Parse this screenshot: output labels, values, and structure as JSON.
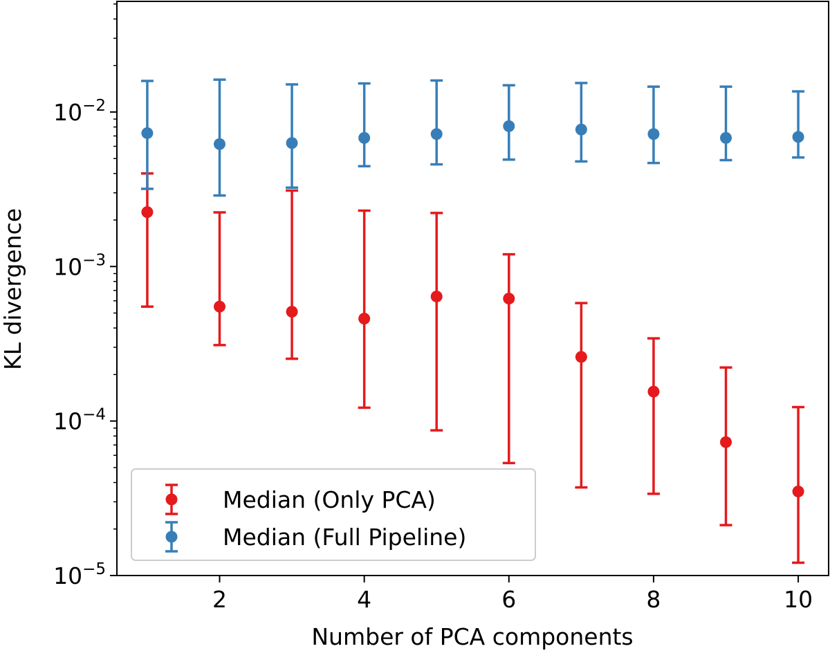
{
  "chart_data": {
    "type": "scatter",
    "title": "",
    "xlabel": "Number of PCA components",
    "ylabel": "KL divergence",
    "yscale": "log",
    "xlim": [
      0.58,
      10.42
    ],
    "ylim": [
      1e-05,
      0.052
    ],
    "xticks": [
      2,
      4,
      6,
      8,
      10
    ],
    "xtick_labels": [
      "2",
      "4",
      "6",
      "8",
      "10"
    ],
    "yticks": [
      {
        "value": 1e-05,
        "base": "10",
        "exp": "−5"
      },
      {
        "value": 0.0001,
        "base": "10",
        "exp": "−4"
      },
      {
        "value": 0.001,
        "base": "10",
        "exp": "−3"
      },
      {
        "value": 0.01,
        "base": "10",
        "exp": "−2"
      }
    ],
    "grid": false,
    "legend_position": "lower-left",
    "series": [
      {
        "name": "Median (Only PCA)",
        "color": "#e41a1c",
        "x": [
          1,
          2,
          3,
          4,
          5,
          6,
          7,
          8,
          9,
          10
        ],
        "y": [
          0.00225,
          0.00055,
          0.00051,
          0.00046,
          0.00064,
          0.00062,
          0.00026,
          0.000155,
          7.3e-05,
          3.5e-05
        ],
        "y_low": [
          0.00055,
          0.00031,
          0.000253,
          0.000122,
          8.7e-05,
          5.35e-05,
          3.72e-05,
          3.38e-05,
          2.12e-05,
          1.21e-05
        ],
        "y_high": [
          0.004,
          0.00224,
          0.0031,
          0.0023,
          0.00222,
          0.0012,
          0.00058,
          0.000343,
          0.000222,
          0.000123
        ]
      },
      {
        "name": "Median (Full Pipeline)",
        "color": "#377eb8",
        "x": [
          1,
          2,
          3,
          4,
          5,
          6,
          7,
          8,
          9,
          10
        ],
        "y": [
          0.0073,
          0.0062,
          0.0063,
          0.0068,
          0.0072,
          0.0081,
          0.0077,
          0.0072,
          0.0068,
          0.0069
        ],
        "y_low": [
          0.00318,
          0.00288,
          0.00324,
          0.00446,
          0.00458,
          0.00492,
          0.00479,
          0.00468,
          0.00488,
          0.00508
        ],
        "y_high": [
          0.0159,
          0.0162,
          0.0151,
          0.0153,
          0.016,
          0.0149,
          0.0154,
          0.0146,
          0.0146,
          0.0136
        ]
      }
    ]
  }
}
